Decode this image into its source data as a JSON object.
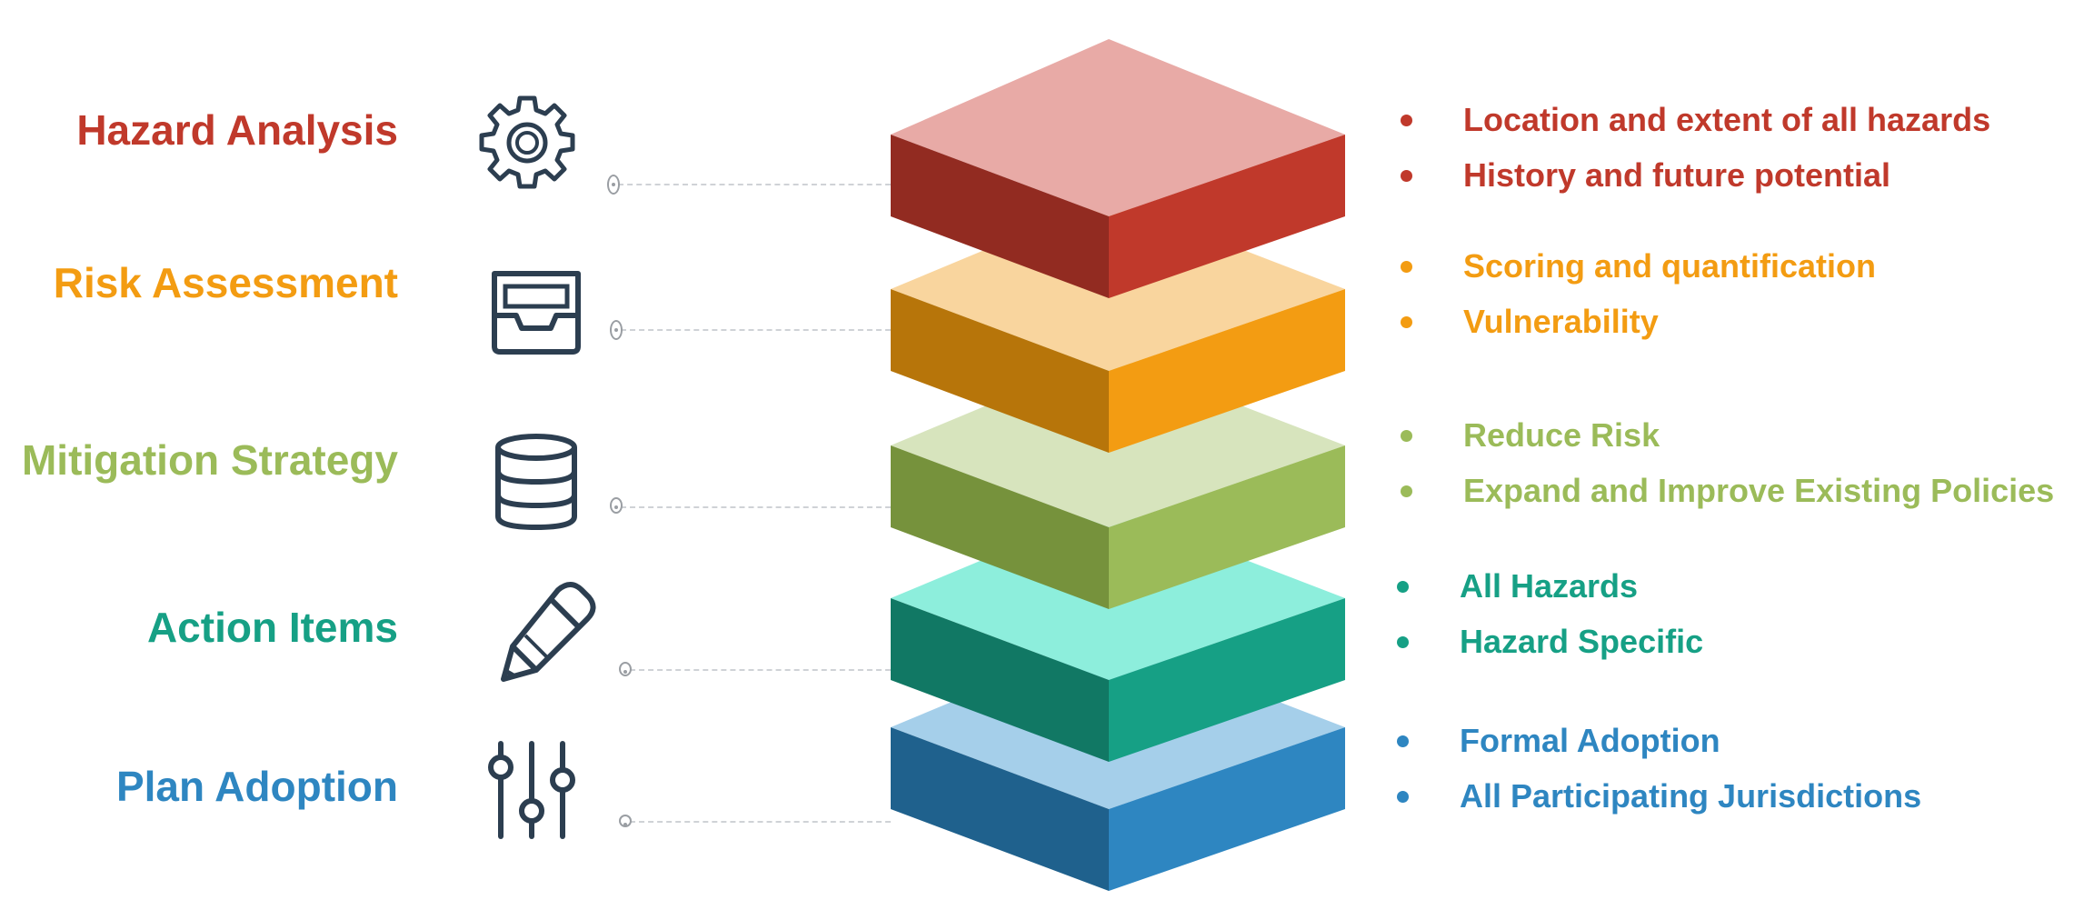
{
  "layers": [
    {
      "title": "Hazard Analysis",
      "icon": "gear-icon",
      "color": "#c0392b",
      "top_color": "#e8aaa6",
      "left_color": "#922b21",
      "right_color": "#c0392b",
      "bullets": [
        "Location and extent of all hazards",
        "History and future potential"
      ]
    },
    {
      "title": "Risk Assessment",
      "icon": "inbox-tray-icon",
      "color": "#f39c12",
      "top_color": "#f9d59e",
      "left_color": "#b7750a",
      "right_color": "#f39c12",
      "bullets": [
        "Scoring and quantification",
        "Vulnerability"
      ]
    },
    {
      "title": "Mitigation Strategy",
      "icon": "database-icon",
      "color": "#9bbb59",
      "top_color": "#d7e4bd",
      "left_color": "#76923c",
      "right_color": "#9bbb59",
      "bullets": [
        "Reduce Risk",
        "Expand and Improve Existing Policies"
      ]
    },
    {
      "title": "Action Items",
      "icon": "pencil-icon",
      "color": "#16a085",
      "top_color": "#8deedc",
      "left_color": "#117864",
      "right_color": "#16a085",
      "bullets": [
        "All Hazards",
        "Hazard Specific"
      ]
    },
    {
      "title": "Plan Adoption",
      "icon": "sliders-icon",
      "color": "#2e86c1",
      "top_color": "#a5cfea",
      "left_color": "#1f618d",
      "right_color": "#2e86c1",
      "bullets": [
        "Formal Adoption",
        "All Participating Jurisdictions"
      ]
    }
  ]
}
